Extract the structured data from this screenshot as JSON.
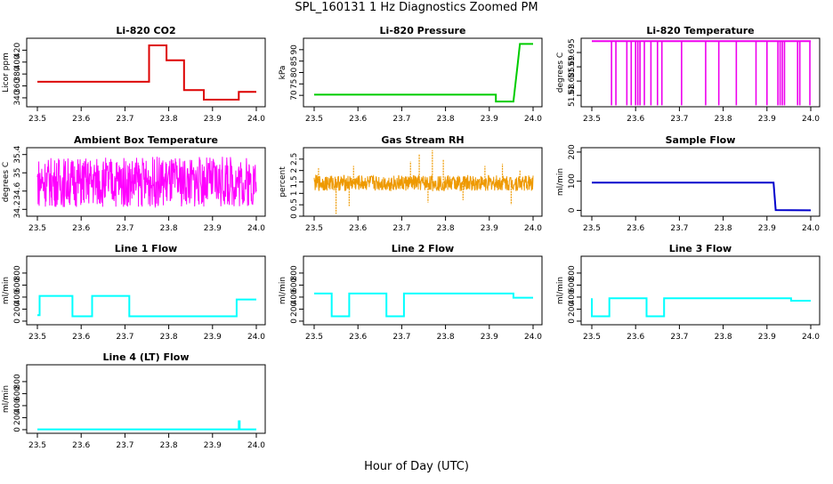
{
  "figure": {
    "title": "SPL_160131  1 Hz Diagnostics Zoomed PM",
    "xlabel": "Hour of Day (UTC)"
  },
  "chart_data": [
    {
      "type": "line",
      "title": "Li-820 CO2",
      "ylabel": "Licor ppm",
      "color": "#dd0000",
      "xlim": [
        23.5,
        24.0
      ],
      "xticks": [
        "23.5",
        "23.6",
        "23.7",
        "23.8",
        "23.9",
        "24.0"
      ],
      "ylim": [
        325,
        440
      ],
      "yticks": [
        340,
        360,
        380,
        400,
        420
      ],
      "grid": false,
      "series": [
        {
          "x": [
            23.5,
            23.755,
            23.755,
            23.795,
            23.795,
            23.835,
            23.835,
            23.88,
            23.88,
            23.96,
            23.96,
            24.0
          ],
          "y": [
            367,
            367,
            428,
            428,
            403,
            403,
            353,
            353,
            337,
            337,
            350,
            350
          ]
        }
      ]
    },
    {
      "type": "line",
      "title": "Li-820 Pressure",
      "ylabel": "kPa",
      "color": "#00cc00",
      "xlim": [
        23.5,
        24.0
      ],
      "xticks": [
        "23.5",
        "23.6",
        "23.7",
        "23.8",
        "23.9",
        "24.0"
      ],
      "ylim": [
        65,
        95
      ],
      "yticks": [
        70,
        75,
        80,
        85,
        90
      ],
      "grid": false,
      "series": [
        {
          "x": [
            23.5,
            23.915,
            23.915,
            23.955,
            23.965,
            23.97,
            24.0
          ],
          "y": [
            70.3,
            70.3,
            67.3,
            67.3,
            84,
            92.5,
            92.5
          ]
        }
      ]
    },
    {
      "type": "line",
      "title": "Li-820 Temperature",
      "ylabel": "degrees C",
      "color": "#ee00ee",
      "xlim": [
        23.5,
        24.0
      ],
      "xticks": [
        "23.5",
        "23.6",
        "23.7",
        "23.8",
        "23.9",
        "24.0"
      ],
      "ylim": [
        51.676,
        51.7
      ],
      "yticks": [
        51.68,
        51.685,
        51.69,
        51.695
      ],
      "grid": false,
      "baseline": 51.699,
      "low": 51.6765,
      "spikes": [
        23.545,
        23.555,
        23.58,
        23.59,
        23.6,
        23.605,
        23.61,
        23.62,
        23.635,
        23.65,
        23.66,
        23.705,
        23.76,
        23.79,
        23.83,
        23.875,
        23.9,
        23.925,
        23.93,
        23.935,
        23.94,
        23.97,
        23.975,
        23.998
      ]
    },
    {
      "type": "line",
      "title": "Ambient Box Temperature",
      "ylabel": "degrees C",
      "color": "#ff00ff",
      "xlim": [
        23.5,
        24.0
      ],
      "xticks": [
        "23.5",
        "23.6",
        "23.7",
        "23.8",
        "23.9",
        "24.0"
      ],
      "ylim": [
        34.05,
        35.55
      ],
      "yticks": [
        34.2,
        34.6,
        35.0,
        35.4
      ],
      "grid": false,
      "noise": {
        "mean": 34.8,
        "amplitude": 0.55,
        "points": 600
      }
    },
    {
      "type": "line",
      "title": "Gas Stream RH",
      "ylabel": "percent",
      "color": "#ee9900",
      "xlim": [
        23.5,
        24.0
      ],
      "xticks": [
        "23.5",
        "23.6",
        "23.7",
        "23.8",
        "23.9",
        "24.0"
      ],
      "ylim": [
        0,
        3
      ],
      "yticks": [
        0.0,
        0.5,
        1.0,
        1.5,
        2.0,
        2.5
      ],
      "grid": false,
      "noise": {
        "mean": 1.45,
        "amplitude": 0.35,
        "points": 700
      },
      "outliers": [
        [
          23.51,
          2.1
        ],
        [
          23.55,
          0.1
        ],
        [
          23.58,
          0.45
        ],
        [
          23.59,
          2.2
        ],
        [
          23.74,
          2.7
        ],
        [
          23.72,
          2.4
        ],
        [
          23.77,
          2.9
        ],
        [
          23.795,
          2.5
        ],
        [
          23.84,
          0.7
        ],
        [
          23.89,
          2.2
        ],
        [
          23.93,
          2.3
        ],
        [
          23.95,
          0.5
        ],
        [
          23.97,
          2.0
        ],
        [
          23.76,
          0.6
        ]
      ]
    },
    {
      "type": "line",
      "title": "Sample Flow",
      "ylabel": "ml/min",
      "color": "#0000cc",
      "xlim": [
        23.5,
        24.0
      ],
      "xticks": [
        "23.5",
        "23.6",
        "23.7",
        "23.8",
        "23.9",
        "24.0"
      ],
      "ylim": [
        -20,
        215
      ],
      "yticks": [
        0,
        100,
        200
      ],
      "grid": false,
      "series": [
        {
          "x": [
            23.5,
            23.915,
            23.92,
            24.0
          ],
          "y": [
            95,
            95,
            1,
            0
          ]
        }
      ]
    },
    {
      "type": "line",
      "title": "Line 1 Flow",
      "ylabel": "ml/min",
      "color": "#00ffff",
      "xlim": [
        23.5,
        24.0
      ],
      "xticks": [
        "23.5",
        "23.6",
        "23.7",
        "23.8",
        "23.9",
        "24.0"
      ],
      "ylim": [
        -60,
        1080
      ],
      "yticks": [
        0,
        200,
        400,
        600,
        800
      ],
      "grid": false,
      "series": [
        {
          "x": [
            23.5,
            23.505,
            23.505,
            23.58,
            23.58,
            23.625,
            23.625,
            23.71,
            23.71,
            23.955,
            23.955,
            24.0
          ],
          "y": [
            100,
            100,
            420,
            420,
            80,
            80,
            420,
            420,
            80,
            80,
            360,
            360
          ]
        }
      ]
    },
    {
      "type": "line",
      "title": "Line 2 Flow",
      "ylabel": "ml/min",
      "color": "#00ffff",
      "xlim": [
        23.5,
        24.0
      ],
      "xticks": [
        "23.5",
        "23.6",
        "23.7",
        "23.8",
        "23.9",
        "24.0"
      ],
      "ylim": [
        -60,
        1080
      ],
      "yticks": [
        0,
        200,
        400,
        600,
        800
      ],
      "grid": false,
      "series": [
        {
          "x": [
            23.5,
            23.54,
            23.54,
            23.58,
            23.58,
            23.665,
            23.665,
            23.705,
            23.705,
            23.955,
            23.955,
            24.0
          ],
          "y": [
            460,
            460,
            80,
            80,
            460,
            460,
            80,
            80,
            460,
            460,
            390,
            390
          ]
        }
      ]
    },
    {
      "type": "line",
      "title": "Line 3 Flow",
      "ylabel": "ml/min",
      "color": "#00ffff",
      "xlim": [
        23.5,
        24.0
      ],
      "xticks": [
        "23.5",
        "23.6",
        "23.7",
        "23.8",
        "23.9",
        "24.0"
      ],
      "ylim": [
        -60,
        1080
      ],
      "yticks": [
        0,
        200,
        400,
        600,
        800
      ],
      "grid": false,
      "series": [
        {
          "x": [
            23.5,
            23.5,
            23.54,
            23.54,
            23.625,
            23.625,
            23.665,
            23.665,
            23.955,
            23.955,
            24.0
          ],
          "y": [
            380,
            80,
            80,
            380,
            380,
            80,
            80,
            380,
            380,
            340,
            340
          ]
        }
      ]
    },
    {
      "type": "line",
      "title": "Line 4 (LT) Flow",
      "ylabel": "ml/min",
      "color": "#00ffff",
      "xlim": [
        23.5,
        24.0
      ],
      "xticks": [
        "23.5",
        "23.6",
        "23.7",
        "23.8",
        "23.9",
        "24.0"
      ],
      "ylim": [
        -60,
        1080
      ],
      "yticks": [
        0,
        200,
        400,
        600,
        800
      ],
      "grid": false,
      "series": [
        {
          "x": [
            23.5,
            23.96,
            23.96,
            23.962,
            23.962,
            24.0
          ],
          "y": [
            5,
            5,
            140,
            140,
            5,
            5
          ]
        }
      ]
    }
  ]
}
